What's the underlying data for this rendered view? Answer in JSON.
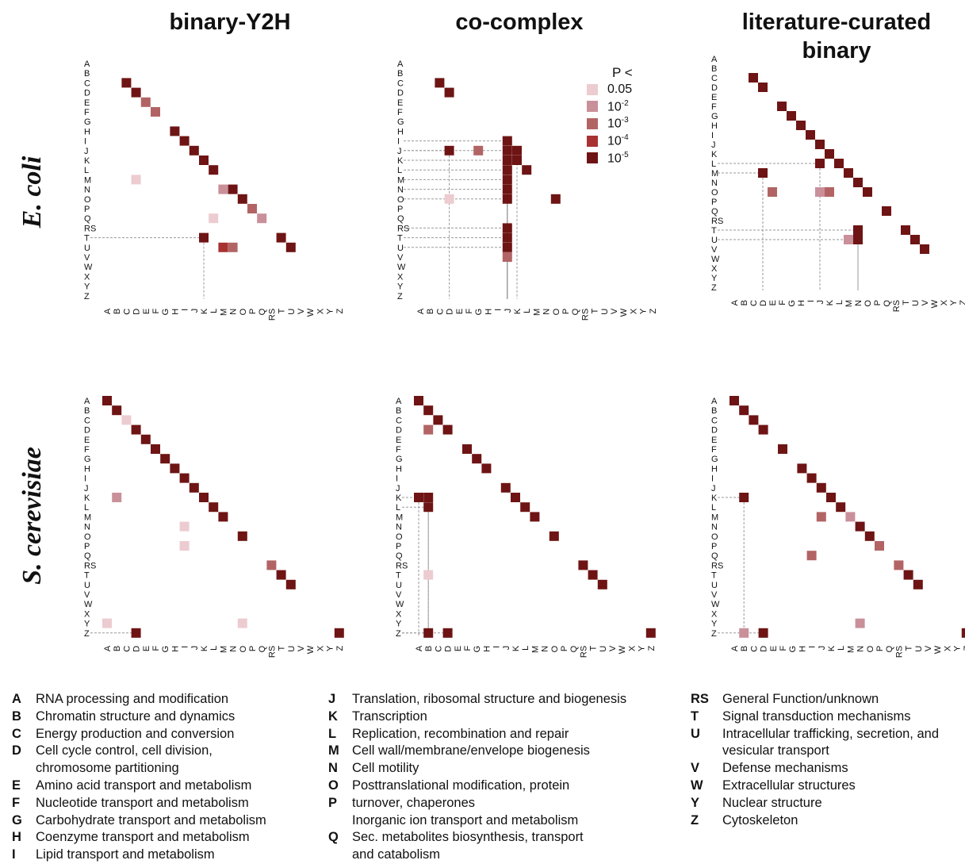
{
  "column_titles": [
    "binary-Y2H",
    "co-complex",
    "literature-curated binary"
  ],
  "row_titles": [
    "E. coli",
    "S. cerevisiae"
  ],
  "categories": [
    "A",
    "B",
    "C",
    "D",
    "E",
    "F",
    "G",
    "H",
    "I",
    "J",
    "K",
    "L",
    "M",
    "N",
    "O",
    "P",
    "Q",
    "RS",
    "T",
    "U",
    "V",
    "W",
    "X",
    "Y",
    "Z"
  ],
  "p_legend": {
    "title": "P <",
    "levels": [
      {
        "base": "0.05",
        "exp": "",
        "color": "#ecccd0"
      },
      {
        "base": "10",
        "exp": "-2",
        "color": "#c9909a"
      },
      {
        "base": "10",
        "exp": "-3",
        "color": "#b26464"
      },
      {
        "base": "10",
        "exp": "-4",
        "color": "#a83232"
      },
      {
        "base": "10",
        "exp": "-5",
        "color": "#6e1414"
      }
    ]
  },
  "chart_data": [
    {
      "type": "heatmap",
      "name": "E. coli binary-Y2H",
      "panel": "ecoli-y2h",
      "x_categories": "categories",
      "y_categories": "categories",
      "cells": [
        [
          "C",
          "C",
          5
        ],
        [
          "D",
          "D",
          5
        ],
        [
          "E",
          "E",
          3
        ],
        [
          "F",
          "F",
          3
        ],
        [
          "H",
          "H",
          5
        ],
        [
          "I",
          "I",
          5
        ],
        [
          "J",
          "J",
          5
        ],
        [
          "K",
          "K",
          5
        ],
        [
          "L",
          "L",
          5
        ],
        [
          "M",
          "D",
          1
        ],
        [
          "N",
          "N",
          5
        ],
        [
          "N",
          "M",
          2
        ],
        [
          "O",
          "O",
          5
        ],
        [
          "P",
          "P",
          3
        ],
        [
          "Q",
          "L",
          1
        ],
        [
          "Q",
          "Q",
          2
        ],
        [
          "T",
          "K",
          5
        ],
        [
          "T",
          "T",
          5
        ],
        [
          "U",
          "U",
          5
        ],
        [
          "U",
          "M",
          4
        ],
        [
          "U",
          "N",
          3
        ]
      ]
    },
    {
      "type": "heatmap",
      "name": "E. coli co-complex",
      "panel": "ecoli-cocomplex",
      "x_categories": "categories",
      "y_categories": "categories",
      "cells": [
        [
          "C",
          "C",
          5
        ],
        [
          "D",
          "D",
          5
        ],
        [
          "J",
          "D",
          5
        ],
        [
          "J",
          "G",
          3
        ],
        [
          "I",
          "J",
          5
        ],
        [
          "J",
          "J",
          5
        ],
        [
          "J",
          "K",
          5
        ],
        [
          "K",
          "K",
          5
        ],
        [
          "K",
          "J",
          5
        ],
        [
          "L",
          "J",
          5
        ],
        [
          "L",
          "L",
          5
        ],
        [
          "M",
          "J",
          5
        ],
        [
          "N",
          "J",
          5
        ],
        [
          "O",
          "J",
          5
        ],
        [
          "O",
          "D",
          1
        ],
        [
          "O",
          "O",
          5
        ],
        [
          "RS",
          "J",
          5
        ],
        [
          "T",
          "J",
          5
        ],
        [
          "U",
          "J",
          5
        ],
        [
          "V",
          "J",
          3
        ]
      ]
    },
    {
      "type": "heatmap",
      "name": "E. coli literature-curated binary",
      "panel": "ecoli-lcb",
      "x_categories": "categories",
      "y_categories": "categories",
      "cells": [
        [
          "C",
          "C",
          5
        ],
        [
          "D",
          "D",
          5
        ],
        [
          "F",
          "F",
          5
        ],
        [
          "G",
          "G",
          5
        ],
        [
          "H",
          "H",
          5
        ],
        [
          "I",
          "I",
          5
        ],
        [
          "J",
          "J",
          5
        ],
        [
          "K",
          "K",
          5
        ],
        [
          "L",
          "L",
          5
        ],
        [
          "L",
          "J",
          5
        ],
        [
          "M",
          "M",
          5
        ],
        [
          "M",
          "D",
          5
        ],
        [
          "N",
          "N",
          5
        ],
        [
          "O",
          "O",
          5
        ],
        [
          "O",
          "E",
          3
        ],
        [
          "O",
          "J",
          2
        ],
        [
          "O",
          "K",
          3
        ],
        [
          "Q",
          "Q",
          5
        ],
        [
          "T",
          "N",
          5
        ],
        [
          "T",
          "T",
          5
        ],
        [
          "U",
          "U",
          5
        ],
        [
          "U",
          "M",
          2
        ],
        [
          "U",
          "N",
          5
        ],
        [
          "V",
          "V",
          5
        ]
      ]
    },
    {
      "type": "heatmap",
      "name": "S. cerevisiae binary-Y2H",
      "panel": "yeast-y2h",
      "x_categories": "categories",
      "y_categories": "categories",
      "cells": [
        [
          "A",
          "A",
          5
        ],
        [
          "B",
          "B",
          5
        ],
        [
          "C",
          "C",
          1
        ],
        [
          "D",
          "D",
          5
        ],
        [
          "E",
          "E",
          5
        ],
        [
          "F",
          "F",
          5
        ],
        [
          "G",
          "G",
          5
        ],
        [
          "H",
          "H",
          5
        ],
        [
          "I",
          "I",
          5
        ],
        [
          "J",
          "J",
          5
        ],
        [
          "K",
          "K",
          5
        ],
        [
          "K",
          "B",
          2
        ],
        [
          "L",
          "L",
          5
        ],
        [
          "M",
          "M",
          5
        ],
        [
          "N",
          "I",
          1
        ],
        [
          "O",
          "O",
          5
        ],
        [
          "P",
          "I",
          1
        ],
        [
          "RS",
          "RS",
          3
        ],
        [
          "T",
          "T",
          5
        ],
        [
          "U",
          "U",
          5
        ],
        [
          "Y",
          "A",
          1
        ],
        [
          "Y",
          "O",
          1
        ],
        [
          "Z",
          "D",
          5
        ],
        [
          "Z",
          "Z",
          5
        ]
      ]
    },
    {
      "type": "heatmap",
      "name": "S. cerevisiae co-complex",
      "panel": "yeast-cocomplex",
      "x_categories": "categories",
      "y_categories": "categories",
      "cells": [
        [
          "A",
          "A",
          5
        ],
        [
          "B",
          "B",
          5
        ],
        [
          "C",
          "C",
          5
        ],
        [
          "D",
          "D",
          5
        ],
        [
          "D",
          "B",
          3
        ],
        [
          "F",
          "F",
          5
        ],
        [
          "G",
          "G",
          5
        ],
        [
          "H",
          "H",
          5
        ],
        [
          "J",
          "J",
          5
        ],
        [
          "K",
          "K",
          5
        ],
        [
          "K",
          "A",
          5
        ],
        [
          "K",
          "B",
          5
        ],
        [
          "L",
          "B",
          5
        ],
        [
          "L",
          "L",
          5
        ],
        [
          "M",
          "M",
          5
        ],
        [
          "O",
          "O",
          5
        ],
        [
          "RS",
          "RS",
          5
        ],
        [
          "T",
          "T",
          5
        ],
        [
          "T",
          "B",
          1
        ],
        [
          "U",
          "U",
          5
        ],
        [
          "Z",
          "B",
          5
        ],
        [
          "Z",
          "D",
          5
        ],
        [
          "Z",
          "Z",
          5
        ]
      ]
    },
    {
      "type": "heatmap",
      "name": "S. cerevisiae literature-curated binary",
      "panel": "yeast-lcb",
      "x_categories": "categories",
      "y_categories": "categories",
      "cells": [
        [
          "A",
          "A",
          5
        ],
        [
          "B",
          "B",
          5
        ],
        [
          "C",
          "C",
          5
        ],
        [
          "D",
          "D",
          5
        ],
        [
          "F",
          "F",
          5
        ],
        [
          "H",
          "H",
          5
        ],
        [
          "I",
          "I",
          5
        ],
        [
          "J",
          "J",
          5
        ],
        [
          "K",
          "K",
          5
        ],
        [
          "K",
          "B",
          5
        ],
        [
          "L",
          "L",
          5
        ],
        [
          "M",
          "J",
          3
        ],
        [
          "M",
          "M",
          2
        ],
        [
          "N",
          "N",
          5
        ],
        [
          "O",
          "O",
          5
        ],
        [
          "P",
          "P",
          3
        ],
        [
          "Q",
          "I",
          3
        ],
        [
          "RS",
          "RS",
          3
        ],
        [
          "T",
          "T",
          5
        ],
        [
          "U",
          "U",
          5
        ],
        [
          "Y",
          "N",
          2
        ],
        [
          "Z",
          "B",
          2
        ],
        [
          "Z",
          "D",
          5
        ],
        [
          "Z",
          "Z",
          5
        ]
      ]
    }
  ],
  "legend_columns": [
    [
      {
        "code": "A",
        "text": "RNA processing and modification"
      },
      {
        "code": "B",
        "text": "Chromatin structure and dynamics"
      },
      {
        "code": "C",
        "text": "Energy production and conversion"
      },
      {
        "code": "D",
        "text": "Cell cycle control, cell division,"
      },
      {
        "code": "",
        "text": "chromosome partitioning"
      },
      {
        "code": "E",
        "text": "Amino acid transport and metabolism"
      },
      {
        "code": "F",
        "text": "Nucleotide transport and metabolism"
      },
      {
        "code": "G",
        "text": "Carbohydrate transport and metabolism"
      },
      {
        "code": "H",
        "text": "Coenzyme transport and metabolism"
      },
      {
        "code": "I",
        "text": "Lipid transport and metabolism"
      }
    ],
    [
      {
        "code": "J",
        "text": "Translation, ribosomal structure and biogenesis"
      },
      {
        "code": "K",
        "text": "Transcription"
      },
      {
        "code": "L",
        "text": "Replication, recombination and repair"
      },
      {
        "code": "M",
        "text": "Cell wall/membrane/envelope biogenesis"
      },
      {
        "code": "N",
        "text": "Cell motility"
      },
      {
        "code": "O",
        "text": "Posttranslational modification, protein"
      },
      {
        "code": "P",
        "text": "turnover, chaperones"
      },
      {
        "code": "",
        "text": "Inorganic ion transport and metabolism"
      },
      {
        "code": "Q",
        "text": "Sec. metabolites biosynthesis, transport"
      },
      {
        "code": "",
        "text": "and catabolism"
      }
    ],
    [
      {
        "code": "RS",
        "text": "General Function/unknown"
      },
      {
        "code": "T",
        "text": "Signal transduction mechanisms"
      },
      {
        "code": "U",
        "text": "Intracellular trafficking, secretion, and"
      },
      {
        "code": "",
        "text": "vesicular transport"
      },
      {
        "code": "V",
        "text": "Defense mechanisms"
      },
      {
        "code": "W",
        "text": "Extracellular structures"
      },
      {
        "code": "Y",
        "text": "Nuclear structure"
      },
      {
        "code": "Z",
        "text": "Cytoskeleton"
      }
    ]
  ]
}
